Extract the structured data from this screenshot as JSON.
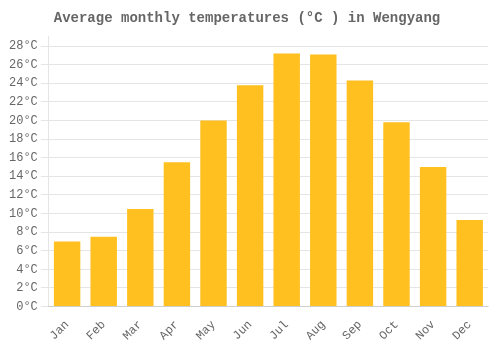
{
  "chart_data": {
    "type": "bar",
    "title": "Average monthly temperatures (°C ) in Wengyang",
    "categories": [
      "Jan",
      "Feb",
      "Mar",
      "Apr",
      "May",
      "Jun",
      "Jul",
      "Aug",
      "Sep",
      "Oct",
      "Nov",
      "Dec"
    ],
    "values": [
      7.0,
      7.5,
      10.5,
      15.5,
      20.0,
      23.8,
      27.2,
      27.1,
      24.3,
      19.8,
      15.0,
      9.3
    ],
    "color": "#FFC020",
    "ylim": [
      0,
      29
    ],
    "yticks": [
      {
        "value": 0,
        "label": "0°C"
      },
      {
        "value": 2,
        "label": "2°C"
      },
      {
        "value": 4,
        "label": "4°C"
      },
      {
        "value": 6,
        "label": "6°C"
      },
      {
        "value": 8,
        "label": "8°C"
      },
      {
        "value": 10,
        "label": "10°C"
      },
      {
        "value": 12,
        "label": "12°C"
      },
      {
        "value": 14,
        "label": "14°C"
      },
      {
        "value": 16,
        "label": "16°C"
      },
      {
        "value": 18,
        "label": "18°C"
      },
      {
        "value": 20,
        "label": "20°C"
      },
      {
        "value": 22,
        "label": "22°C"
      },
      {
        "value": 24,
        "label": "24°C"
      },
      {
        "value": 26,
        "label": "26°C"
      },
      {
        "value": 28,
        "label": "28°C"
      }
    ],
    "grid": true
  }
}
